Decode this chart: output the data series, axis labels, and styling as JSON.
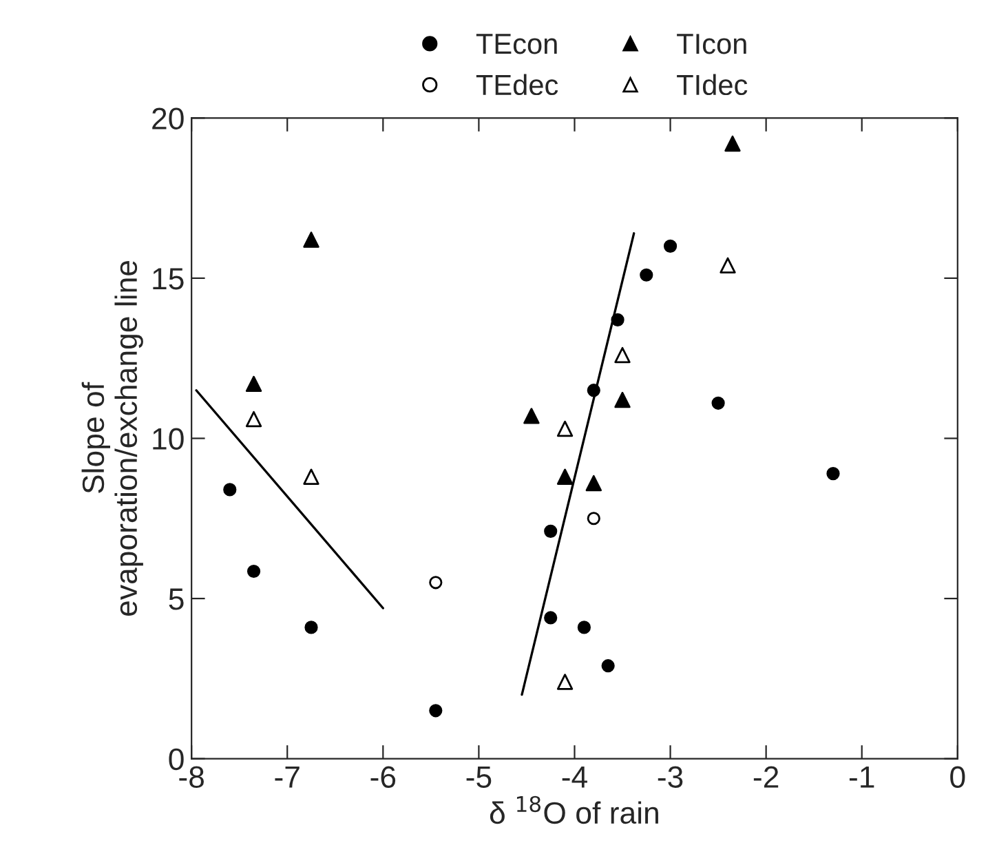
{
  "chart_data": {
    "type": "scatter",
    "xlabel": "δ $^{18}$O of rain",
    "ylabel": "Slope of\nevaporation/exchange line",
    "xlim": [
      -8,
      0
    ],
    "ylim": [
      0,
      20
    ],
    "xticks": [
      -8,
      -7,
      -6,
      -5,
      -4,
      -3,
      -2,
      -1,
      0
    ],
    "yticks": [
      0,
      5,
      10,
      15,
      20
    ],
    "grid": false,
    "legend": "top",
    "series": [
      {
        "name": "TEcon",
        "color": "#000000",
        "marker": "circle",
        "x": [
          -7.6,
          -7.35,
          -6.75,
          -5.45,
          -4.25,
          -4.25,
          -3.9,
          -3.65,
          -3.8,
          -3.55,
          -3.25,
          -3.0,
          -2.5,
          -1.3
        ],
        "values": [
          8.4,
          5.85,
          4.1,
          1.5,
          7.1,
          4.4,
          4.1,
          2.9,
          11.5,
          13.7,
          15.1,
          16.0,
          11.1,
          8.9
        ]
      },
      {
        "name": "TEdec",
        "color": "#000000",
        "marker": "circle",
        "x": [
          -5.45,
          -3.8
        ],
        "values": [
          5.5,
          7.5
        ]
      },
      {
        "name": "TIcon",
        "color": "#000000",
        "marker": "triangle",
        "x": [
          -7.35,
          -6.75,
          -4.45,
          -4.1,
          -3.8,
          -3.5,
          -2.35
        ],
        "values": [
          11.7,
          16.2,
          10.7,
          8.8,
          8.6,
          11.2,
          19.2
        ]
      },
      {
        "name": "TIdec",
        "color": "#000000",
        "marker": "triangle",
        "x": [
          -7.35,
          -6.75,
          -4.1,
          -4.1,
          -3.5,
          -2.4
        ],
        "values": [
          10.6,
          8.8,
          10.3,
          2.4,
          12.6,
          15.4
        ]
      },
      {
        "type": "line",
        "color": "#000000",
        "line_style": "solid",
        "marker": "none",
        "x": [
          -7.95,
          -6.0
        ],
        "values": [
          11.5,
          4.7
        ]
      },
      {
        "type": "line",
        "color": "#000000",
        "line_style": "solid",
        "marker": "none",
        "x": [
          -4.55,
          -3.38
        ],
        "values": [
          2.0,
          16.4
        ]
      }
    ]
  }
}
